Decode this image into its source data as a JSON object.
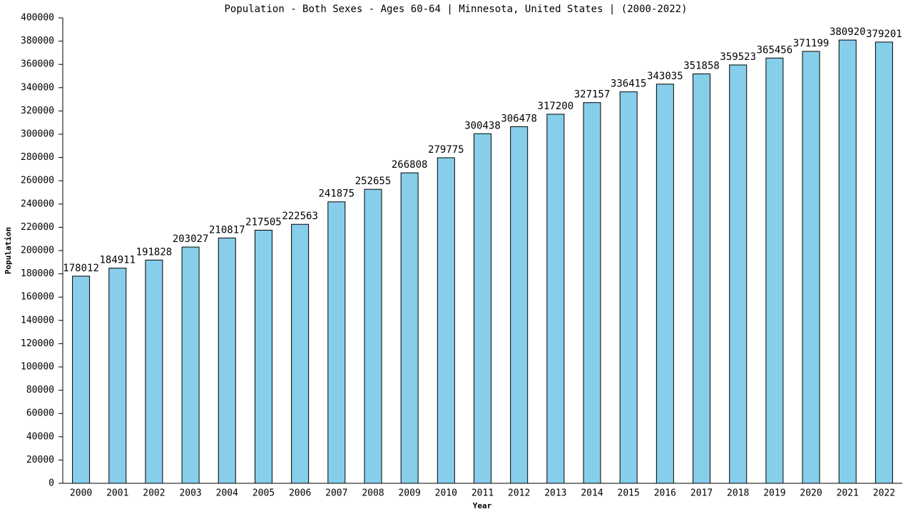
{
  "chart_data": {
    "type": "bar",
    "title": "Population - Both Sexes - Ages 60-64 | Minnesota, United States |  (2000-2022)",
    "x_label": "Year",
    "y_label": "Population",
    "categories": [
      "2000",
      "2001",
      "2002",
      "2003",
      "2004",
      "2005",
      "2006",
      "2007",
      "2008",
      "2009",
      "2010",
      "2011",
      "2012",
      "2013",
      "2014",
      "2015",
      "2016",
      "2017",
      "2018",
      "2019",
      "2020",
      "2021",
      "2022"
    ],
    "values": [
      178012,
      184911,
      191828,
      203027,
      210817,
      217505,
      222563,
      241875,
      252655,
      266808,
      279775,
      300438,
      306478,
      317200,
      327157,
      336415,
      343035,
      351858,
      359523,
      365456,
      371199,
      380920,
      379201
    ],
    "color": "#87ceeb",
    "ylim": [
      0,
      400000
    ],
    "yticks": [
      0,
      20000,
      40000,
      60000,
      80000,
      100000,
      120000,
      140000,
      160000,
      180000,
      200000,
      220000,
      240000,
      260000,
      280000,
      300000,
      320000,
      340000,
      360000,
      380000,
      400000
    ],
    "grid": false
  }
}
